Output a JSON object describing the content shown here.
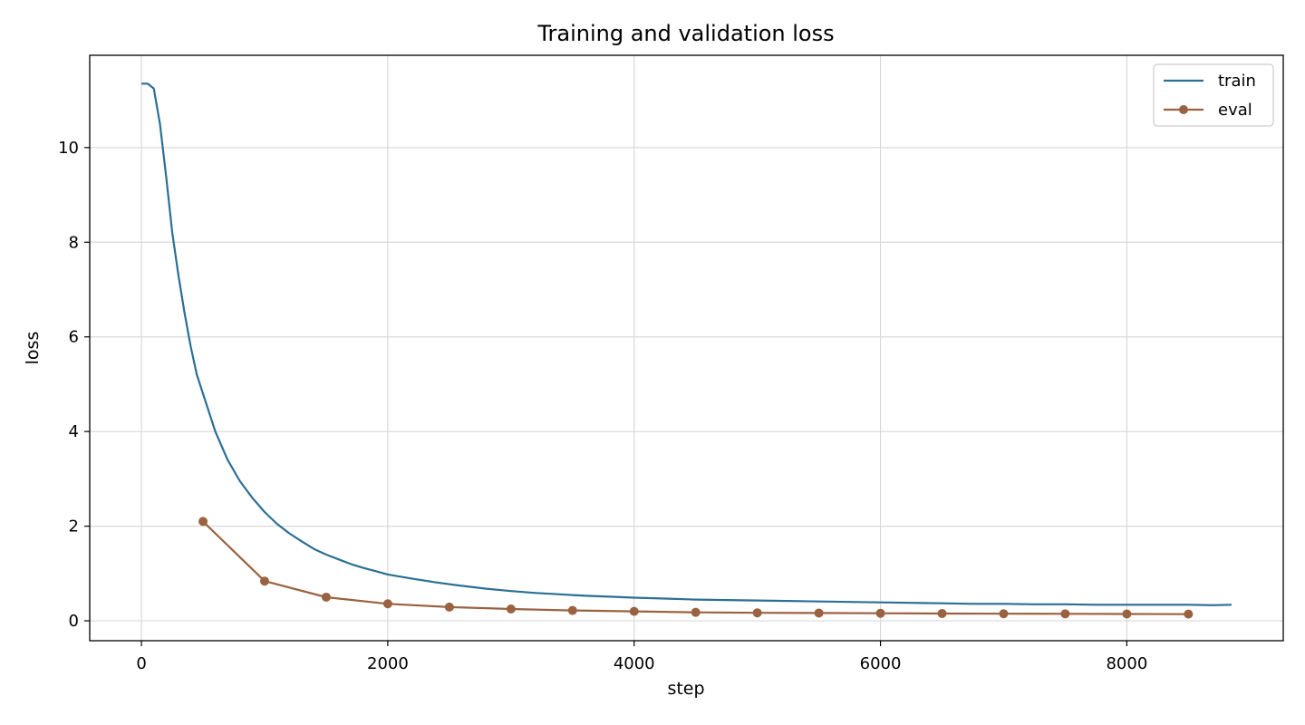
{
  "chart_data": {
    "type": "line",
    "title": "Training and validation loss",
    "xlabel": "step",
    "ylabel": "loss",
    "xlim": [
      -420,
      9270
    ],
    "ylim": [
      -0.42,
      11.95
    ],
    "xticks": [
      0,
      2000,
      4000,
      6000,
      8000
    ],
    "xtick_labels": [
      "0",
      "2000",
      "4000",
      "6000",
      "8000"
    ],
    "yticks": [
      0,
      2,
      4,
      6,
      8,
      10
    ],
    "ytick_labels": [
      "0",
      "2",
      "4",
      "6",
      "8",
      "10"
    ],
    "grid": true,
    "legend_position": "top-right",
    "series": [
      {
        "name": "train",
        "color": "#2b6f95",
        "marker": "none",
        "x": [
          0,
          50,
          100,
          150,
          200,
          250,
          300,
          350,
          400,
          450,
          500,
          600,
          700,
          800,
          900,
          1000,
          1100,
          1200,
          1300,
          1400,
          1500,
          1600,
          1700,
          1800,
          1900,
          2000,
          2200,
          2400,
          2600,
          2800,
          3000,
          3200,
          3400,
          3600,
          3800,
          4000,
          4250,
          4500,
          4750,
          5000,
          5250,
          5500,
          5750,
          6000,
          6250,
          6500,
          6750,
          7000,
          7250,
          7500,
          7750,
          8000,
          8250,
          8500,
          8700,
          8850
        ],
        "y": [
          11.35,
          11.35,
          11.25,
          10.5,
          9.4,
          8.2,
          7.3,
          6.5,
          5.8,
          5.2,
          4.8,
          4.0,
          3.4,
          2.95,
          2.6,
          2.3,
          2.05,
          1.85,
          1.68,
          1.52,
          1.4,
          1.3,
          1.2,
          1.12,
          1.05,
          0.98,
          0.89,
          0.81,
          0.74,
          0.68,
          0.63,
          0.59,
          0.56,
          0.53,
          0.51,
          0.49,
          0.47,
          0.45,
          0.44,
          0.43,
          0.42,
          0.41,
          0.4,
          0.39,
          0.38,
          0.37,
          0.36,
          0.36,
          0.35,
          0.35,
          0.34,
          0.34,
          0.34,
          0.34,
          0.33,
          0.34
        ]
      },
      {
        "name": "eval",
        "color": "#9a6240",
        "marker": "circle",
        "x": [
          500,
          1000,
          1500,
          2000,
          2500,
          3000,
          3500,
          4000,
          4500,
          5000,
          5500,
          6000,
          6500,
          7000,
          7500,
          8000,
          8500
        ],
        "y": [
          2.1,
          0.84,
          0.5,
          0.36,
          0.29,
          0.25,
          0.22,
          0.2,
          0.18,
          0.17,
          0.165,
          0.16,
          0.155,
          0.15,
          0.148,
          0.145,
          0.142
        ]
      }
    ]
  }
}
